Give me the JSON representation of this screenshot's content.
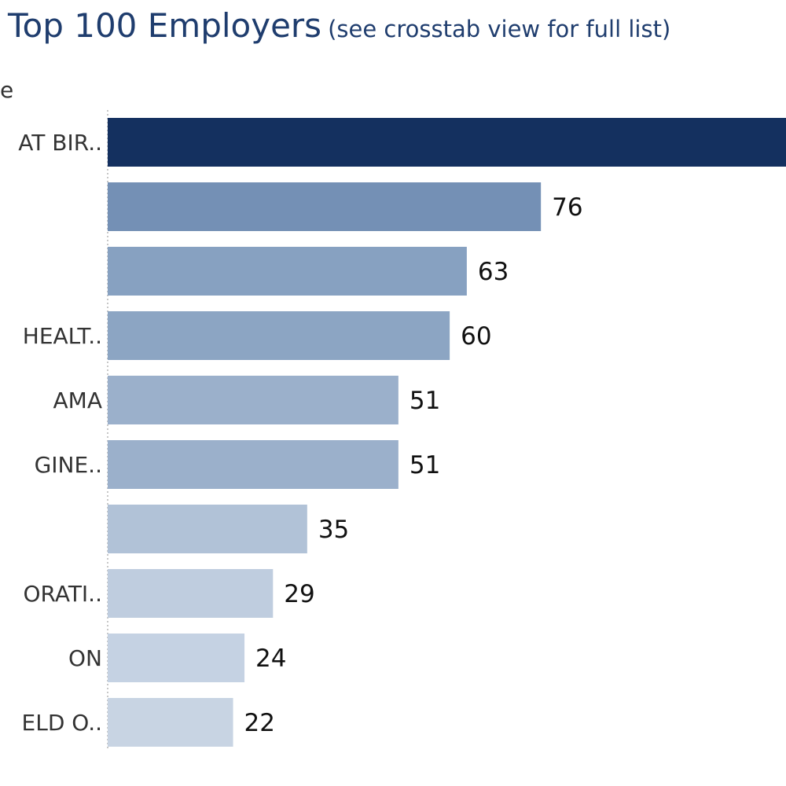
{
  "header": {
    "title": "Top 100 Employers",
    "subtitle": "(see crosstab view for full list)",
    "column_label": "e"
  },
  "chart_data": {
    "type": "bar",
    "orientation": "horizontal",
    "title": "Top 100 Employers",
    "subtitle": "(see crosstab view for full list)",
    "categories": [
      "AT BIR..",
      "",
      "",
      "HEALT..",
      "AMA",
      "GINE..",
      "",
      "ORATI..",
      "ON",
      "ELD O.."
    ],
    "values": [
      null,
      76,
      63,
      60,
      51,
      51,
      35,
      29,
      24,
      22
    ],
    "value_labels": [
      "",
      "76",
      "63",
      "60",
      "51",
      "51",
      "35",
      "29",
      "24",
      "22"
    ],
    "xlim": [
      0,
      119
    ],
    "grid": false,
    "colors": [
      "#14305f",
      "#7490b5",
      "#87a1c1",
      "#8ca5c3",
      "#9bb0cb",
      "#9bb0cb",
      "#b1c2d7",
      "#bfcddf",
      "#c5d2e3",
      "#c8d4e3"
    ]
  }
}
